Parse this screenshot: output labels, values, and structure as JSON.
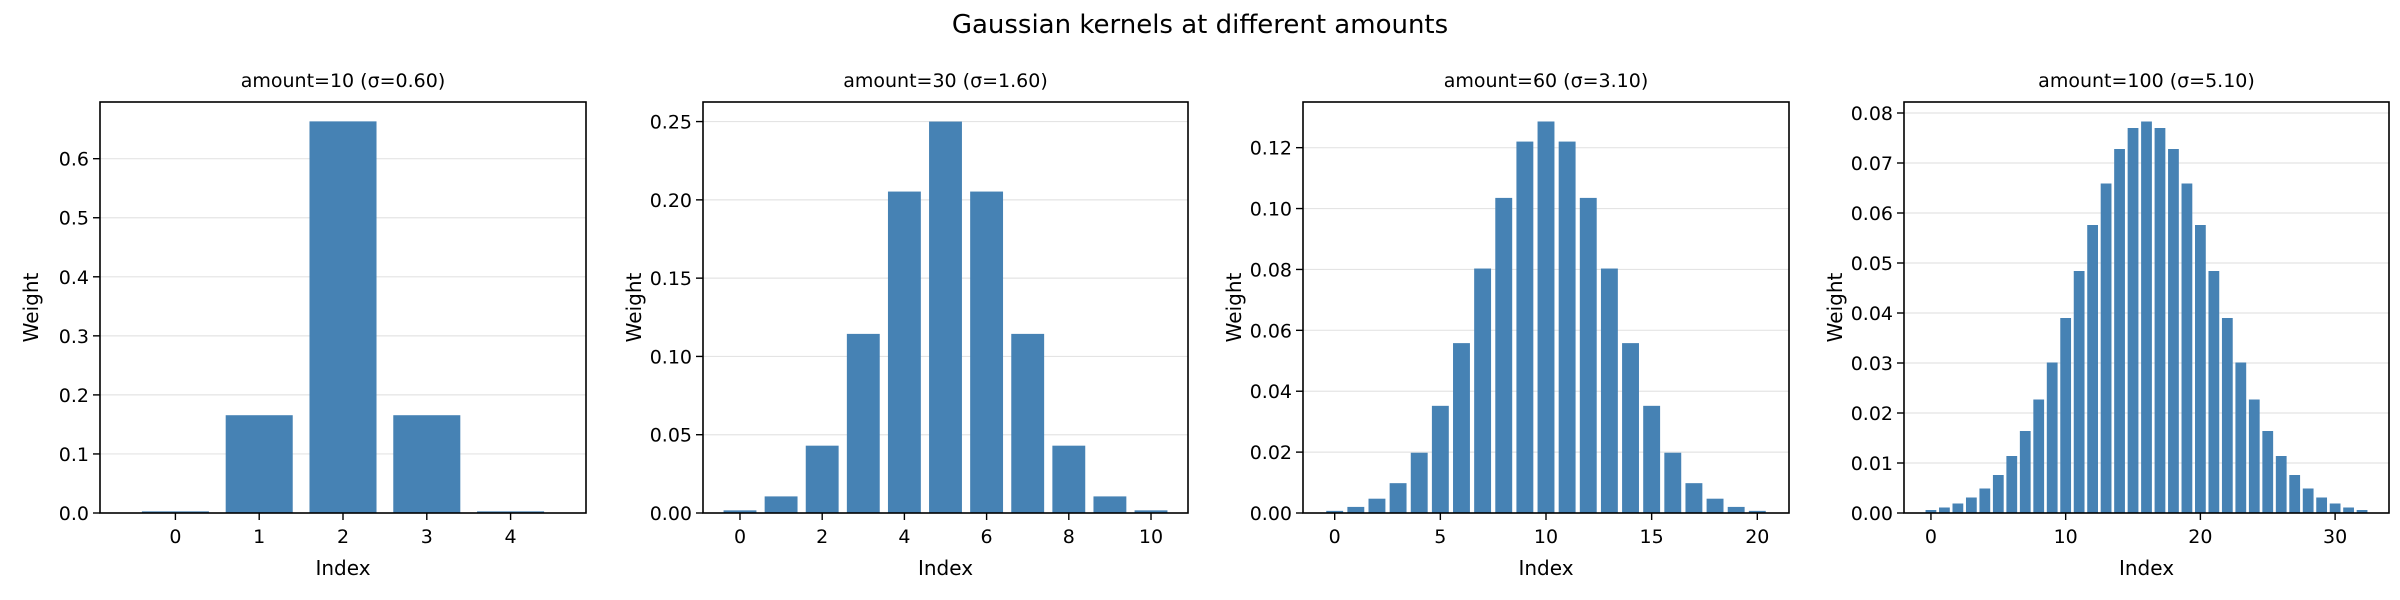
{
  "figure": {
    "title": "Gaussian kernels at different amounts",
    "bar_color": "#4682b4",
    "grid_color": "#e4e4e4"
  },
  "chart_data": [
    {
      "type": "bar",
      "title": "amount=10  (σ=0.60)",
      "xlabel": "Index",
      "ylabel": "Weight",
      "x": [
        0,
        1,
        2,
        3,
        4
      ],
      "values": [
        0.0028,
        0.1656,
        0.6632,
        0.1656,
        0.0028
      ],
      "xlim": [
        -0.9,
        4.9
      ],
      "ylim": [
        0,
        0.696
      ],
      "xticks": [
        0,
        1,
        2,
        3,
        4
      ],
      "yticks": [
        0.0,
        0.1,
        0.2,
        0.3,
        0.4,
        0.5,
        0.6
      ],
      "ytick_labels": [
        "0.0",
        "0.1",
        "0.2",
        "0.3",
        "0.4",
        "0.5",
        "0.6"
      ],
      "grid": "y"
    },
    {
      "type": "bar",
      "title": "amount=30  (σ=1.60)",
      "xlabel": "Index",
      "ylabel": "Weight",
      "x": [
        0,
        1,
        2,
        3,
        4,
        5,
        6,
        7,
        8,
        9,
        10
      ],
      "values": [
        0.0017,
        0.0106,
        0.043,
        0.1144,
        0.2053,
        0.25,
        0.2053,
        0.1144,
        0.043,
        0.0106,
        0.0017
      ],
      "xlim": [
        -0.9,
        10.9
      ],
      "ylim": [
        0,
        0.2625
      ],
      "xticks": [
        0,
        2,
        4,
        6,
        8,
        10
      ],
      "yticks": [
        0.0,
        0.05,
        0.1,
        0.15,
        0.2,
        0.25
      ],
      "ytick_labels": [
        "0.00",
        "0.05",
        "0.10",
        "0.15",
        "0.20",
        "0.25"
      ],
      "grid": "y"
    },
    {
      "type": "bar",
      "title": "amount=60  (σ=3.10)",
      "xlabel": "Index",
      "ylabel": "Weight",
      "x": [
        0,
        1,
        2,
        3,
        4,
        5,
        6,
        7,
        8,
        9,
        10,
        11,
        12,
        13,
        14,
        15,
        16,
        17,
        18,
        19,
        20
      ],
      "values": [
        0.0007,
        0.002,
        0.0047,
        0.0098,
        0.0198,
        0.0352,
        0.0558,
        0.0803,
        0.1035,
        0.122,
        0.1286,
        0.122,
        0.1035,
        0.0803,
        0.0558,
        0.0352,
        0.0198,
        0.0098,
        0.0047,
        0.002,
        0.0007
      ],
      "xlim": [
        -1.5,
        21.5
      ],
      "ylim": [
        0,
        0.135
      ],
      "xticks": [
        0,
        5,
        10,
        15,
        20
      ],
      "yticks": [
        0.0,
        0.02,
        0.04,
        0.06,
        0.08,
        0.1,
        0.12
      ],
      "ytick_labels": [
        "0.00",
        "0.02",
        "0.04",
        "0.06",
        "0.08",
        "0.10",
        "0.12"
      ],
      "grid": "y"
    },
    {
      "type": "bar",
      "title": "amount=100  (σ=5.10)",
      "xlabel": "Index",
      "ylabel": "Weight",
      "x": [
        0,
        1,
        2,
        3,
        4,
        5,
        6,
        7,
        8,
        9,
        10,
        11,
        12,
        13,
        14,
        15,
        16,
        17,
        18,
        19,
        20,
        21,
        22,
        23,
        24,
        25,
        26,
        27,
        28,
        29,
        30,
        31,
        32
      ],
      "values": [
        0.0006,
        0.0011,
        0.0019,
        0.0031,
        0.0049,
        0.0076,
        0.0114,
        0.0164,
        0.0227,
        0.0301,
        0.039,
        0.0484,
        0.0576,
        0.0659,
        0.0728,
        0.077,
        0.0783,
        0.077,
        0.0728,
        0.0659,
        0.0576,
        0.0484,
        0.039,
        0.0301,
        0.0227,
        0.0164,
        0.0114,
        0.0076,
        0.0049,
        0.0031,
        0.0019,
        0.0011,
        0.0006
      ],
      "xlim": [
        -2.0,
        34.0
      ],
      "ylim": [
        0,
        0.0822
      ],
      "xticks": [
        0,
        10,
        20,
        30
      ],
      "yticks": [
        0.0,
        0.01,
        0.02,
        0.03,
        0.04,
        0.05,
        0.06,
        0.07,
        0.08
      ],
      "ytick_labels": [
        "0.00",
        "0.01",
        "0.02",
        "0.03",
        "0.04",
        "0.05",
        "0.06",
        "0.07",
        "0.08"
      ],
      "grid": "y"
    }
  ]
}
